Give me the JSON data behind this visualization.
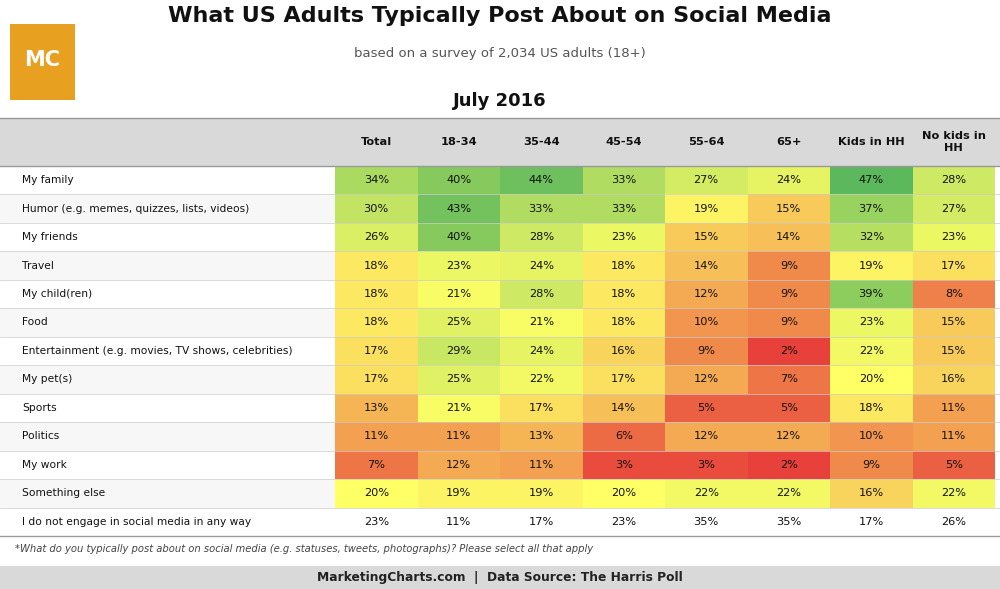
{
  "title": "What US Adults Typically Post About on Social Media",
  "subtitle": "based on a survey of 2,034 US adults (18+)",
  "period": "July 2016",
  "columns": [
    "Total",
    "18-34",
    "35-44",
    "45-54",
    "55-64",
    "65+",
    "Kids in HH",
    "No kids in\nHH"
  ],
  "rows": [
    "My family",
    "Humor (e.g. memes, quizzes, lists, videos)",
    "My friends",
    "Travel",
    "My child(ren)",
    "Food",
    "Entertainment (e.g. movies, TV shows, celebrities)",
    "My pet(s)",
    "Sports",
    "Politics",
    "My work",
    "Something else",
    "I do not engage in social media in any way"
  ],
  "values": [
    [
      34,
      40,
      44,
      33,
      27,
      24,
      47,
      28
    ],
    [
      30,
      43,
      33,
      33,
      19,
      15,
      37,
      27
    ],
    [
      26,
      40,
      28,
      23,
      15,
      14,
      32,
      23
    ],
    [
      18,
      23,
      24,
      18,
      14,
      9,
      19,
      17
    ],
    [
      18,
      21,
      28,
      18,
      12,
      9,
      39,
      8
    ],
    [
      18,
      25,
      21,
      18,
      10,
      9,
      23,
      15
    ],
    [
      17,
      29,
      24,
      16,
      9,
      2,
      22,
      15
    ],
    [
      17,
      25,
      22,
      17,
      12,
      7,
      20,
      16
    ],
    [
      13,
      21,
      17,
      14,
      5,
      5,
      18,
      11
    ],
    [
      11,
      11,
      13,
      6,
      12,
      12,
      10,
      11
    ],
    [
      7,
      12,
      11,
      3,
      3,
      2,
      9,
      5
    ],
    [
      20,
      19,
      19,
      20,
      22,
      22,
      16,
      22
    ],
    [
      23,
      11,
      17,
      23,
      35,
      35,
      17,
      26
    ]
  ],
  "no_color_rows": [
    12
  ],
  "footer_note": "*What do you typically post about on social media (e.g. statuses, tweets, photographs)? Please select all that apply",
  "footer_source": "MarketingCharts.com  |  Data Source: The Harris Poll",
  "bg_color": "#ffffff",
  "header_bg": "#d9d9d9",
  "color_low_r": 232,
  "color_low_g": 65,
  "color_low_b": 59,
  "color_mid_r": 255,
  "color_mid_g": 255,
  "color_mid_b": 102,
  "color_high_r": 92,
  "color_high_g": 184,
  "color_high_b": 92,
  "vmin": 2,
  "vmid": 20,
  "vmax": 47
}
